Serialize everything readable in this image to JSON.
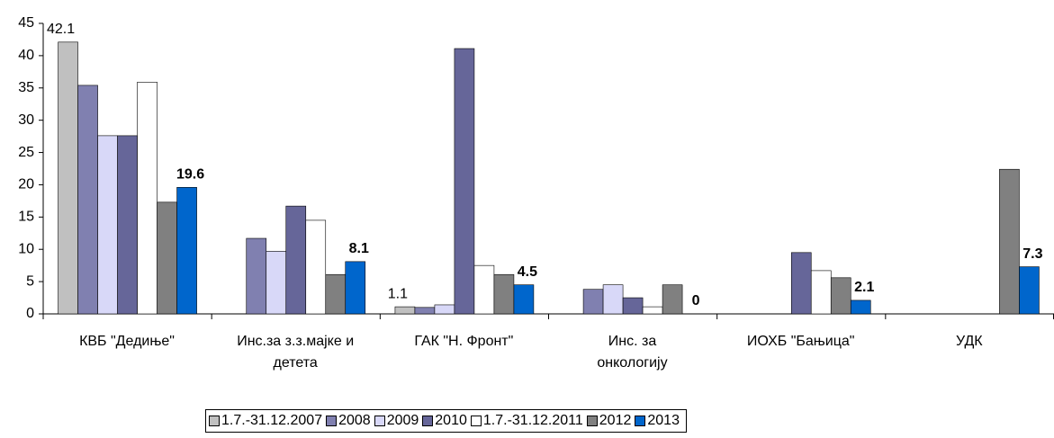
{
  "chart_data": {
    "type": "bar",
    "categories": [
      "КВБ \"Дедиње\"",
      "Инс.за з.з.мајке и\nдетета",
      "ГАК \"Н. Фронт\"",
      "Инс. за\nонкологију",
      "ИОХБ \"Бањица\"",
      "УДК"
    ],
    "series": [
      {
        "name": "1.7.-31.12.2007",
        "color": "#c0c0c0",
        "values": [
          42.1,
          null,
          1.1,
          null,
          null,
          null
        ],
        "value_labels": [
          "42.1",
          null,
          "1.1",
          null,
          null,
          null
        ]
      },
      {
        "name": "2008",
        "color": "#8080b0",
        "values": [
          35.4,
          11.7,
          1.0,
          3.8,
          null,
          null
        ]
      },
      {
        "name": "2009",
        "color": "#d8d8f8",
        "values": [
          27.6,
          9.7,
          1.4,
          4.5,
          null,
          null
        ]
      },
      {
        "name": "2010",
        "color": "#666699",
        "values": [
          27.6,
          16.7,
          41.1,
          2.5,
          9.5,
          null
        ]
      },
      {
        "name": "1.7.-31.12.2011",
        "color": "#ffffff",
        "values": [
          35.9,
          14.5,
          7.5,
          1.1,
          6.7,
          null
        ]
      },
      {
        "name": "2012",
        "color": "#808080",
        "values": [
          17.3,
          6.1,
          6.1,
          4.5,
          5.6,
          22.4
        ]
      },
      {
        "name": "2013",
        "color": "#0066cc",
        "values": [
          19.6,
          8.1,
          4.5,
          0,
          2.1,
          7.3
        ],
        "value_labels": [
          "19.6",
          "8.1",
          "4.5",
          "0",
          "2.1",
          "7.3"
        ]
      }
    ],
    "ylim": [
      0,
      45
    ],
    "yticks": [
      0,
      5,
      10,
      15,
      20,
      25,
      30,
      35,
      40,
      45
    ]
  }
}
